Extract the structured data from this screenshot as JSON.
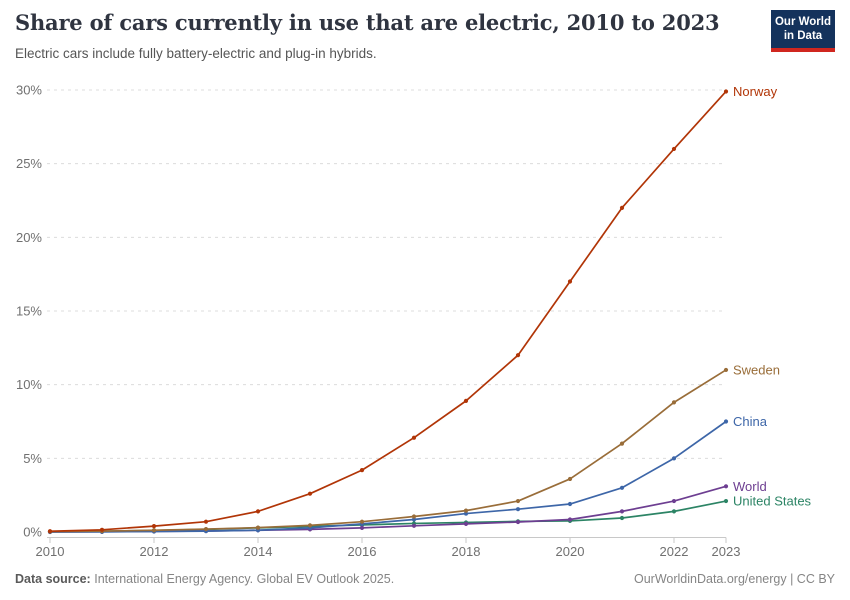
{
  "header": {
    "title": "Share of cars currently in use that are electric, 2010 to 2023",
    "subtitle": "Electric cars include fully battery-electric and plug-in hybrids.",
    "logo": {
      "line1": "Our World",
      "line2": "in Data",
      "bg_color": "#14325C",
      "bar_color": "#D0261F"
    }
  },
  "chart_data": {
    "type": "line",
    "title": "Share of cars currently in use that are electric, 2010 to 2023",
    "xlabel": "",
    "ylabel": "",
    "x": [
      2010,
      2011,
      2012,
      2013,
      2014,
      2015,
      2016,
      2017,
      2018,
      2019,
      2020,
      2021,
      2022,
      2023
    ],
    "series": [
      {
        "name": "Norway",
        "color": "#B13507",
        "values": [
          0.05,
          0.15,
          0.4,
          0.7,
          1.4,
          2.6,
          4.2,
          6.4,
          8.9,
          12.0,
          17.0,
          22.0,
          26.0,
          29.9
        ]
      },
      {
        "name": "Sweden",
        "color": "#996D39",
        "values": [
          0.03,
          0.06,
          0.12,
          0.2,
          0.3,
          0.45,
          0.7,
          1.05,
          1.45,
          2.1,
          3.6,
          6.0,
          8.8,
          11.0
        ]
      },
      {
        "name": "China",
        "color": "#3D66A8",
        "values": [
          0.0,
          0.01,
          0.03,
          0.06,
          0.12,
          0.28,
          0.55,
          0.85,
          1.25,
          1.55,
          1.9,
          3.0,
          5.0,
          7.5
        ]
      },
      {
        "name": "World",
        "color": "#6D3E91",
        "values": [
          0.01,
          0.02,
          0.04,
          0.07,
          0.12,
          0.18,
          0.28,
          0.42,
          0.55,
          0.68,
          0.85,
          1.4,
          2.1,
          3.1
        ]
      },
      {
        "name": "United States",
        "color": "#2C8465",
        "values": [
          0.02,
          0.05,
          0.1,
          0.18,
          0.28,
          0.38,
          0.48,
          0.58,
          0.65,
          0.72,
          0.75,
          0.95,
          1.4,
          2.1
        ]
      }
    ],
    "ylim": [
      0,
      30
    ],
    "yticks": [
      0,
      5,
      10,
      15,
      20,
      25,
      30
    ],
    "ytick_suffix": "%",
    "xticks": [
      2010,
      2012,
      2014,
      2016,
      2018,
      2020,
      2022,
      2023
    ],
    "grid": "horizontal-dashed",
    "legend_position": "right-end-labels",
    "grid_color": "#dcdcdc",
    "axis_color": "#c8c8c8",
    "tick_label_color": "#707070"
  },
  "footer": {
    "source_label": "Data source:",
    "source_text": "International Energy Agency. Global EV Outlook 2025.",
    "right_text": "OurWorldinData.org/energy | CC BY"
  }
}
